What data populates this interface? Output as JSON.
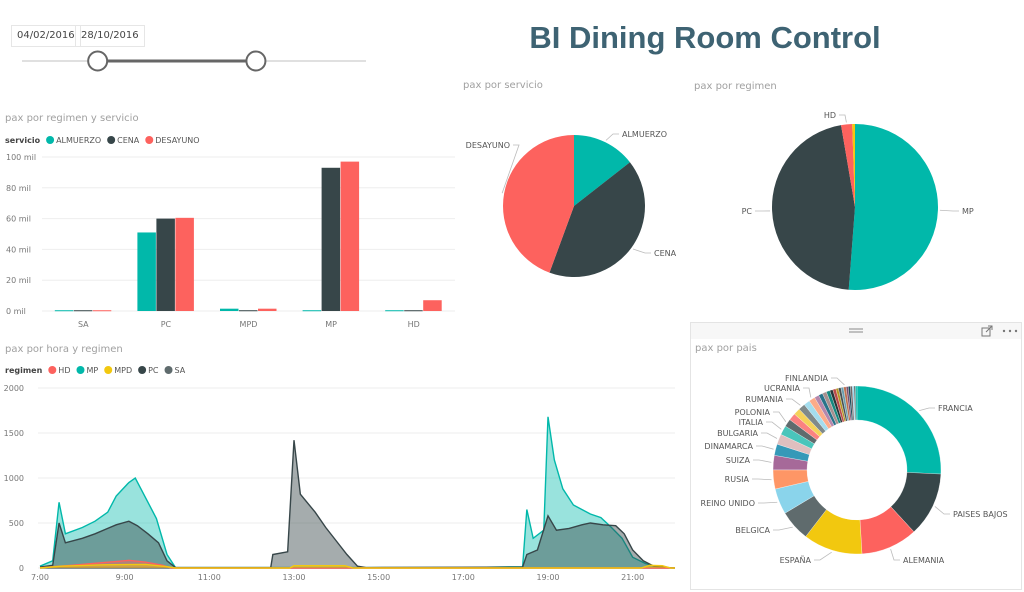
{
  "header": {
    "title": "BI Dining Room Control"
  },
  "date_slicer": {
    "start": "04/02/2016",
    "end": "28/10/2016",
    "range_fraction": [
      0.22,
      0.68
    ]
  },
  "panel_icons": [
    "drag-handle-icon",
    "focus-mode-icon",
    "more-options-icon"
  ],
  "colors": {
    "teal": "#01B8AA",
    "dark": "#374649",
    "red": "#FD625E",
    "yellow": "#F2C80F",
    "gray": "#5F6B6D"
  },
  "chart_data": [
    {
      "id": "bar",
      "type": "bar",
      "title": "pax por regimen y servicio",
      "legend_title": "servicio",
      "legend_position": "top-left",
      "categories": [
        "SA",
        "PC",
        "MPD",
        "MP",
        "HD"
      ],
      "series": [
        {
          "name": "ALMUERZO",
          "color": "#01B8AA",
          "values": [
            0.5,
            51,
            1.5,
            0.5,
            0.5
          ]
        },
        {
          "name": "CENA",
          "color": "#374649",
          "values": [
            0.5,
            60,
            0.5,
            93,
            0.5
          ]
        },
        {
          "name": "DESAYUNO",
          "color": "#FD625E",
          "values": [
            0.5,
            60.5,
            1.5,
            97,
            7
          ]
        }
      ],
      "ylim": [
        0,
        100
      ],
      "yticks": [
        0,
        20,
        40,
        60,
        80,
        100
      ],
      "ytick_labels": [
        "0 mil",
        "20 mil",
        "40 mil",
        "60 mil",
        "80 mil",
        "100 mil"
      ],
      "grid": true
    },
    {
      "id": "pie_servicio",
      "type": "pie",
      "title": "pax por servicio",
      "slices": [
        {
          "label": "ALMUERZO",
          "value": 54,
          "color": "#01B8AA"
        },
        {
          "label": "CENA",
          "value": 154,
          "color": "#374649"
        },
        {
          "label": "DESAYUNO",
          "value": 166,
          "color": "#FD625E"
        }
      ]
    },
    {
      "id": "pie_regimen",
      "type": "pie",
      "title": "pax por regimen",
      "slices": [
        {
          "label": "MP",
          "value": 190.5,
          "color": "#01B8AA"
        },
        {
          "label": "PC",
          "value": 171.5,
          "color": "#374649"
        },
        {
          "label": "HD",
          "value": 8,
          "color": "#FD625E"
        },
        {
          "label": "",
          "value": 2,
          "color": "#F2C80F"
        }
      ]
    },
    {
      "id": "donut_pais",
      "type": "pie",
      "title": "pax por pais",
      "slices": [
        {
          "label": "FRANCIA",
          "value": 26,
          "color": "#01B8AA"
        },
        {
          "label": "PAISES BAJOS",
          "value": 12.5,
          "color": "#374649"
        },
        {
          "label": "ALEMANIA",
          "value": 11,
          "color": "#FD625E"
        },
        {
          "label": "ESPAÑA",
          "value": 11.5,
          "color": "#F2C80F"
        },
        {
          "label": "BELGICA",
          "value": 6,
          "color": "#5F6B6D"
        },
        {
          "label": "REINO UNIDO",
          "value": 5,
          "color": "#8AD4EB"
        },
        {
          "label": "RUSIA",
          "value": 3.7,
          "color": "#FE9666"
        },
        {
          "label": "SUIZA",
          "value": 2.8,
          "color": "#A66999"
        },
        {
          "label": "DINAMARCA",
          "value": 2.2,
          "color": "#3599B8"
        },
        {
          "label": "BULGARIA",
          "value": 2,
          "color": "#DFBFBF"
        },
        {
          "label": "ITALIA",
          "value": 1.8,
          "color": "#4AC5BB"
        },
        {
          "label": "POLONIA",
          "value": 1.5,
          "color": "#5F6B6D"
        },
        {
          "label": "",
          "value": 1.4,
          "color": "#FB8281"
        },
        {
          "label": "",
          "value": 1.3,
          "color": "#F4D25A"
        },
        {
          "label": "RUMANIA",
          "value": 1.3,
          "color": "#7F898A"
        },
        {
          "label": "",
          "value": 1.2,
          "color": "#A4DDEE"
        },
        {
          "label": "UCRANIA",
          "value": 1.2,
          "color": "#FDAB89"
        },
        {
          "label": "",
          "value": 0.9,
          "color": "#B687AC"
        },
        {
          "label": "",
          "value": 0.8,
          "color": "#28738A"
        },
        {
          "label": "",
          "value": 0.8,
          "color": "#A78F8F"
        },
        {
          "label": "",
          "value": 0.7,
          "color": "#168980"
        },
        {
          "label": "",
          "value": 0.6,
          "color": "#293537"
        },
        {
          "label": "",
          "value": 0.6,
          "color": "#BB4A4A"
        },
        {
          "label": "",
          "value": 0.5,
          "color": "#B59525"
        },
        {
          "label": "",
          "value": 0.5,
          "color": "#475052"
        },
        {
          "label": "",
          "value": 0.5,
          "color": "#6A9FB0"
        },
        {
          "label": "FINLANDIA",
          "value": 0.5,
          "color": "#BD7150"
        },
        {
          "label": "",
          "value": 0.4,
          "color": "#7B4F71"
        },
        {
          "label": "",
          "value": 0.4,
          "color": "#1B4D5C"
        },
        {
          "label": "",
          "value": 0.4,
          "color": "#706767"
        },
        {
          "label": "",
          "value": 0.3,
          "color": "#8AD4EB"
        },
        {
          "label": "",
          "value": 0.3,
          "color": "#5F6B6D"
        },
        {
          "label": "",
          "value": 0.3,
          "color": "#01B8AA"
        }
      ],
      "donut": true
    },
    {
      "id": "area_hora",
      "type": "area",
      "title": "pax por hora y regimen",
      "legend_title": "regimen",
      "legend_position": "top-left",
      "xlim": [
        7,
        22
      ],
      "xticks": [
        7,
        9,
        11,
        13,
        15,
        17,
        19,
        21
      ],
      "xtick_labels": [
        "7:00",
        "9:00",
        "11:00",
        "13:00",
        "15:00",
        "17:00",
        "19:00",
        "21:00"
      ],
      "ylim": [
        0,
        2000
      ],
      "yticks": [
        0,
        500,
        1000,
        1500,
        2000
      ],
      "ytick_labels": [
        "0",
        "500",
        "1000",
        "1500",
        "2000"
      ],
      "grid": true,
      "series": [
        {
          "name": "HD",
          "color": "#FD625E",
          "points": [
            [
              7,
              0
            ],
            [
              7.3,
              15
            ],
            [
              7.75,
              30
            ],
            [
              8.25,
              50
            ],
            [
              8.75,
              70
            ],
            [
              9.1,
              85
            ],
            [
              9.5,
              65
            ],
            [
              9.9,
              30
            ],
            [
              10.1,
              0
            ],
            [
              22,
              0
            ]
          ]
        },
        {
          "name": "MP",
          "color": "#01B8AA",
          "points": [
            [
              7,
              20
            ],
            [
              7.3,
              80
            ],
            [
              7.45,
              730
            ],
            [
              7.6,
              380
            ],
            [
              8,
              450
            ],
            [
              8.3,
              520
            ],
            [
              8.6,
              620
            ],
            [
              8.8,
              800
            ],
            [
              9.1,
              950
            ],
            [
              9.25,
              1000
            ],
            [
              9.45,
              820
            ],
            [
              9.75,
              550
            ],
            [
              10,
              150
            ],
            [
              10.2,
              5
            ],
            [
              17,
              5
            ],
            [
              18.4,
              15
            ],
            [
              18.5,
              650
            ],
            [
              18.65,
              330
            ],
            [
              18.9,
              420
            ],
            [
              19,
              1680
            ],
            [
              19.15,
              1200
            ],
            [
              19.35,
              880
            ],
            [
              19.6,
              700
            ],
            [
              20,
              600
            ],
            [
              20.25,
              560
            ],
            [
              20.5,
              450
            ],
            [
              20.75,
              330
            ],
            [
              21,
              120
            ],
            [
              21.3,
              50
            ],
            [
              21.6,
              10
            ],
            [
              22,
              0
            ]
          ]
        },
        {
          "name": "MPD",
          "color": "#F2C80F",
          "points": [
            [
              7,
              0
            ],
            [
              7.5,
              20
            ],
            [
              8.5,
              35
            ],
            [
              9.5,
              40
            ],
            [
              10,
              15
            ],
            [
              10.2,
              0
            ],
            [
              12.9,
              0
            ],
            [
              13,
              25
            ],
            [
              14.2,
              25
            ],
            [
              14.4,
              0
            ],
            [
              21.2,
              0
            ],
            [
              21.4,
              30
            ],
            [
              21.7,
              25
            ],
            [
              21.9,
              0
            ],
            [
              22,
              0
            ]
          ]
        },
        {
          "name": "PC",
          "color": "#374649",
          "points": [
            [
              7,
              10
            ],
            [
              7.3,
              30
            ],
            [
              7.45,
              500
            ],
            [
              7.6,
              280
            ],
            [
              8,
              330
            ],
            [
              8.3,
              380
            ],
            [
              8.6,
              440
            ],
            [
              8.8,
              480
            ],
            [
              9.1,
              520
            ],
            [
              9.3,
              470
            ],
            [
              9.55,
              380
            ],
            [
              9.8,
              280
            ],
            [
              10,
              80
            ],
            [
              10.2,
              5
            ],
            [
              12.45,
              5
            ],
            [
              12.5,
              150
            ],
            [
              12.85,
              180
            ],
            [
              13,
              1420
            ],
            [
              13.15,
              820
            ],
            [
              13.5,
              620
            ],
            [
              13.75,
              450
            ],
            [
              14,
              300
            ],
            [
              14.25,
              150
            ],
            [
              14.5,
              20
            ],
            [
              14.7,
              5
            ],
            [
              18.4,
              10
            ],
            [
              18.5,
              150
            ],
            [
              18.75,
              200
            ],
            [
              19,
              580
            ],
            [
              19.2,
              420
            ],
            [
              19.5,
              440
            ],
            [
              19.8,
              480
            ],
            [
              20,
              500
            ],
            [
              20.3,
              480
            ],
            [
              20.6,
              470
            ],
            [
              20.8,
              380
            ],
            [
              21,
              200
            ],
            [
              21.25,
              80
            ],
            [
              21.5,
              20
            ],
            [
              21.8,
              5
            ],
            [
              22,
              0
            ]
          ]
        },
        {
          "name": "SA",
          "color": "#5F6B6D",
          "points": [
            [
              7,
              0
            ],
            [
              22,
              0
            ]
          ]
        }
      ]
    }
  ]
}
